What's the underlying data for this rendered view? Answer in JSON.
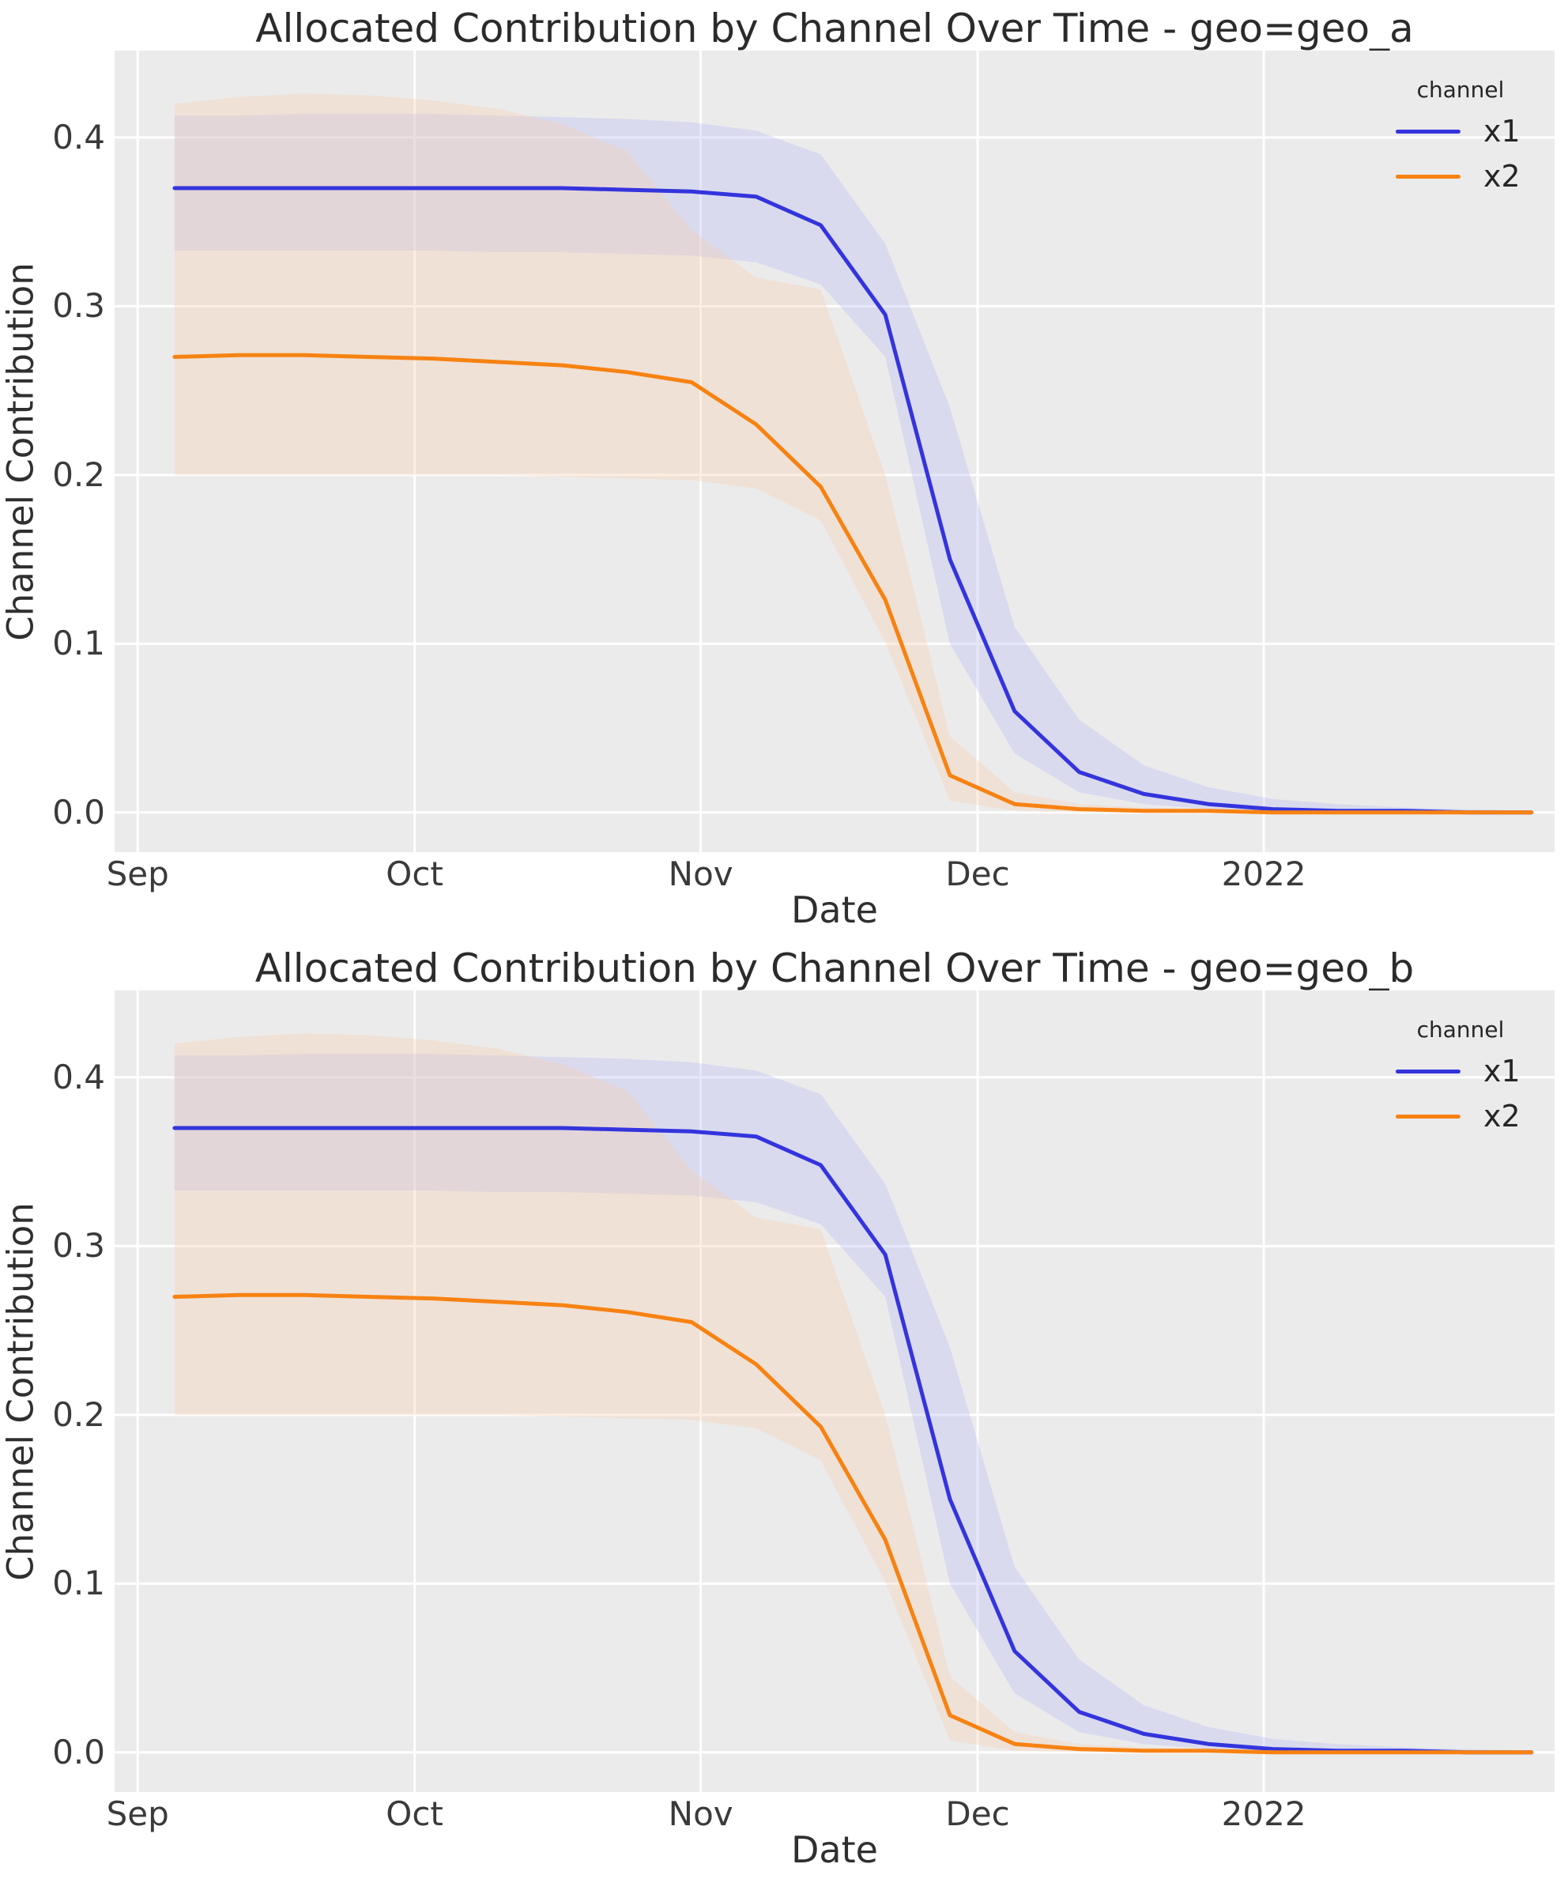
{
  "style": {
    "figure_background": "#ffffff",
    "plot_background": "#ebebeb",
    "grid_color": "#ffffff",
    "text_color": "#2f2f2f",
    "blue": "#3434dd",
    "orange": "#f78212"
  },
  "chart_data": [
    {
      "type": "line",
      "title": "Allocated Contribution by Channel Over Time - geo=geo_a",
      "xlabel": "Date",
      "ylabel": "Channel Contribution",
      "legend_title": "channel",
      "legend_position": "upper right",
      "grid": true,
      "x_tick_labels": [
        "Sep",
        "Oct",
        "Nov",
        "Dec",
        "2022"
      ],
      "x_tick_days": [
        0,
        30,
        61,
        91,
        122
      ],
      "y_tick_labels": [
        "0.0",
        "0.1",
        "0.2",
        "0.3",
        "0.4"
      ],
      "y_tick_values": [
        0.0,
        0.1,
        0.2,
        0.3,
        0.4
      ],
      "xlim": [
        -2.5,
        153.5
      ],
      "ylim": [
        -0.0235,
        0.4515
      ],
      "x_days_since_sep1": [
        4,
        11,
        18,
        25,
        32,
        39,
        46,
        53,
        60,
        67,
        74,
        81,
        88,
        95,
        102,
        109,
        116,
        123,
        130,
        137,
        144,
        151
      ],
      "series": [
        {
          "name": "x1",
          "color": "#3434dd",
          "band_fill": "rgba(184,187,244,0.35)",
          "values": [
            0.37,
            0.37,
            0.37,
            0.37,
            0.37,
            0.37,
            0.37,
            0.369,
            0.368,
            0.365,
            0.348,
            0.295,
            0.15,
            0.06,
            0.024,
            0.011,
            0.005,
            0.002,
            0.001,
            0.001,
            0.0,
            0.0
          ],
          "upper": [
            0.413,
            0.413,
            0.414,
            0.414,
            0.414,
            0.413,
            0.412,
            0.411,
            0.409,
            0.404,
            0.39,
            0.337,
            0.24,
            0.11,
            0.055,
            0.028,
            0.015,
            0.008,
            0.005,
            0.003,
            0.002,
            0.001
          ],
          "lower": [
            0.333,
            0.333,
            0.333,
            0.333,
            0.333,
            0.332,
            0.332,
            0.331,
            0.33,
            0.326,
            0.313,
            0.27,
            0.1,
            0.035,
            0.012,
            0.005,
            0.002,
            0.001,
            0.0,
            0.0,
            0.0,
            0.0
          ]
        },
        {
          "name": "x2",
          "color": "#f78212",
          "band_fill": "rgba(246,206,175,0.35)",
          "values": [
            0.27,
            0.271,
            0.271,
            0.27,
            0.269,
            0.267,
            0.265,
            0.261,
            0.255,
            0.23,
            0.193,
            0.126,
            0.022,
            0.005,
            0.002,
            0.001,
            0.001,
            0.0,
            0.0,
            0.0,
            0.0,
            0.0
          ],
          "upper": [
            0.42,
            0.424,
            0.426,
            0.425,
            0.422,
            0.417,
            0.408,
            0.392,
            0.345,
            0.317,
            0.31,
            0.2,
            0.045,
            0.012,
            0.005,
            0.003,
            0.002,
            0.001,
            0.001,
            0.001,
            0.0,
            0.0
          ],
          "lower": [
            0.2,
            0.2,
            0.2,
            0.2,
            0.2,
            0.2,
            0.199,
            0.198,
            0.197,
            0.192,
            0.173,
            0.101,
            0.007,
            0.001,
            0.0,
            0.0,
            0.0,
            0.0,
            0.0,
            0.0,
            0.0,
            0.0
          ]
        }
      ]
    },
    {
      "type": "line",
      "title": "Allocated Contribution by Channel Over Time - geo=geo_b",
      "xlabel": "Date",
      "ylabel": "Channel Contribution",
      "legend_title": "channel",
      "legend_position": "upper right",
      "grid": true,
      "x_tick_labels": [
        "Sep",
        "Oct",
        "Nov",
        "Dec",
        "2022"
      ],
      "x_tick_days": [
        0,
        30,
        61,
        91,
        122
      ],
      "y_tick_labels": [
        "0.0",
        "0.1",
        "0.2",
        "0.3",
        "0.4"
      ],
      "y_tick_values": [
        0.0,
        0.1,
        0.2,
        0.3,
        0.4
      ],
      "xlim": [
        -2.5,
        153.5
      ],
      "ylim": [
        -0.0235,
        0.4515
      ],
      "x_days_since_sep1": [
        4,
        11,
        18,
        25,
        32,
        39,
        46,
        53,
        60,
        67,
        74,
        81,
        88,
        95,
        102,
        109,
        116,
        123,
        130,
        137,
        144,
        151
      ],
      "series": [
        {
          "name": "x1",
          "color": "#3434dd",
          "band_fill": "rgba(184,187,244,0.35)",
          "values": [
            0.37,
            0.37,
            0.37,
            0.37,
            0.37,
            0.37,
            0.37,
            0.369,
            0.368,
            0.365,
            0.348,
            0.295,
            0.15,
            0.06,
            0.024,
            0.011,
            0.005,
            0.002,
            0.001,
            0.001,
            0.0,
            0.0
          ],
          "upper": [
            0.413,
            0.413,
            0.414,
            0.414,
            0.414,
            0.413,
            0.412,
            0.411,
            0.409,
            0.404,
            0.39,
            0.337,
            0.24,
            0.11,
            0.055,
            0.028,
            0.015,
            0.008,
            0.005,
            0.003,
            0.002,
            0.001
          ],
          "lower": [
            0.333,
            0.333,
            0.333,
            0.333,
            0.333,
            0.332,
            0.332,
            0.331,
            0.33,
            0.326,
            0.313,
            0.27,
            0.1,
            0.035,
            0.012,
            0.005,
            0.002,
            0.001,
            0.0,
            0.0,
            0.0,
            0.0
          ]
        },
        {
          "name": "x2",
          "color": "#f78212",
          "band_fill": "rgba(246,206,175,0.35)",
          "values": [
            0.27,
            0.271,
            0.271,
            0.27,
            0.269,
            0.267,
            0.265,
            0.261,
            0.255,
            0.23,
            0.193,
            0.126,
            0.022,
            0.005,
            0.002,
            0.001,
            0.001,
            0.0,
            0.0,
            0.0,
            0.0,
            0.0
          ],
          "upper": [
            0.42,
            0.424,
            0.426,
            0.425,
            0.422,
            0.417,
            0.408,
            0.392,
            0.345,
            0.317,
            0.31,
            0.2,
            0.045,
            0.012,
            0.005,
            0.003,
            0.002,
            0.001,
            0.001,
            0.001,
            0.0,
            0.0
          ],
          "lower": [
            0.2,
            0.2,
            0.2,
            0.2,
            0.2,
            0.2,
            0.199,
            0.198,
            0.197,
            0.192,
            0.173,
            0.101,
            0.007,
            0.001,
            0.0,
            0.0,
            0.0,
            0.0,
            0.0,
            0.0,
            0.0,
            0.0
          ]
        }
      ]
    }
  ]
}
